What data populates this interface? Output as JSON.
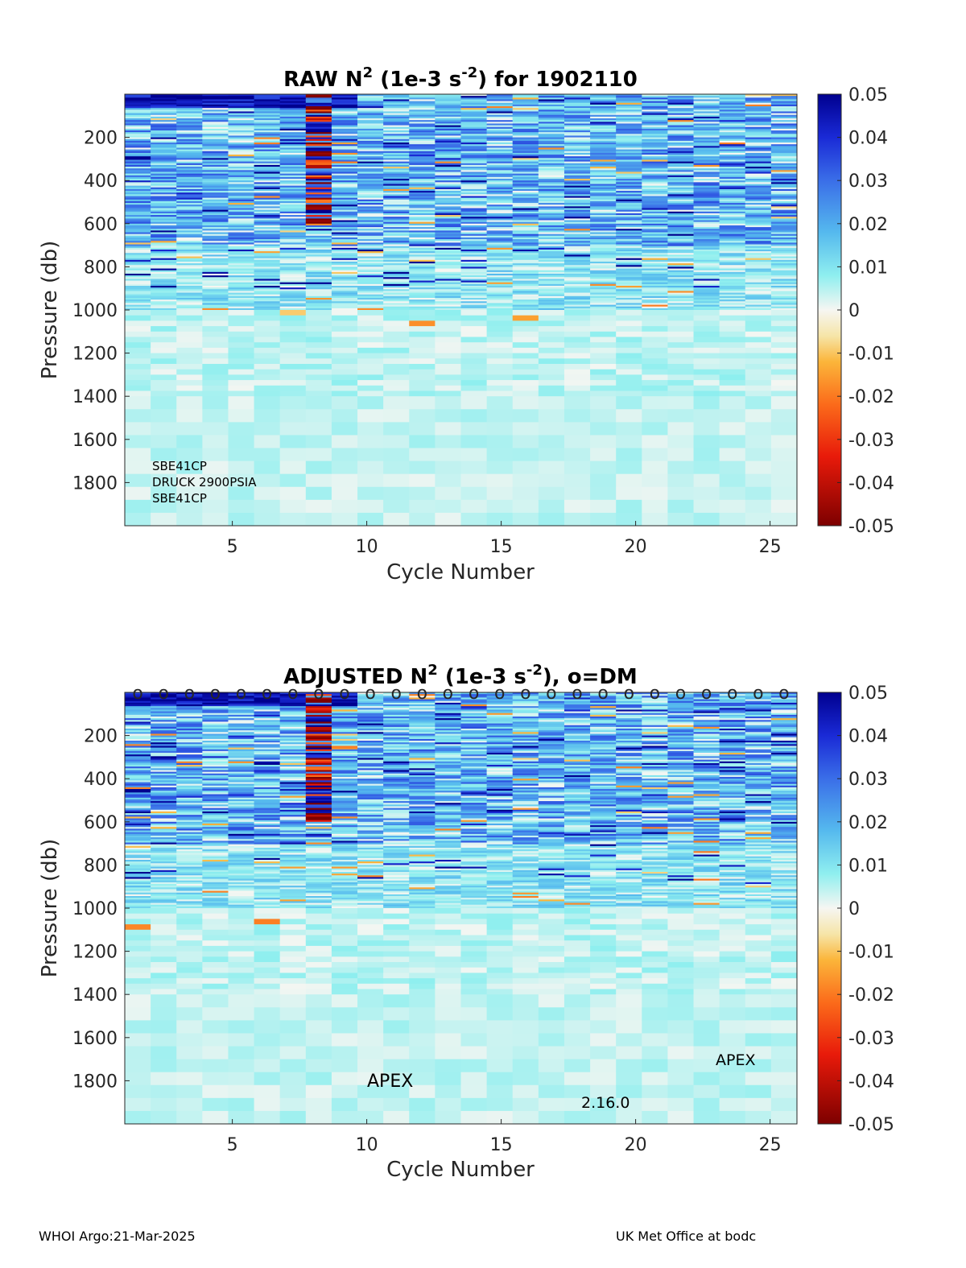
{
  "chart_data": [
    {
      "type": "heatmap",
      "title_main": "RAW N",
      "title_sup1": "2",
      "title_mid": " (1e-3 s",
      "title_sup2": "-2",
      "title_end": ") for 1902110",
      "xlabel": "Cycle Number",
      "ylabel": "Pressure (db)",
      "xlim": [
        1,
        26
      ],
      "ylim": [
        2000,
        0
      ],
      "x_ticks": [
        "5",
        "10",
        "15",
        "20",
        "25"
      ],
      "y_ticks": [
        "200",
        "400",
        "600",
        "800",
        "1000",
        "1200",
        "1400",
        "1600",
        "1800"
      ],
      "colorbar_ticks": [
        "0.05",
        "0.04",
        "0.03",
        "0.02",
        "0.01",
        "0",
        "-0.01",
        "-0.02",
        "-0.03",
        "-0.04",
        "-0.05"
      ],
      "clim": [
        -0.05,
        0.05
      ],
      "annotations": [
        "SBE41CP",
        "DRUCK 2900PSIA",
        "SBE41CP"
      ]
    },
    {
      "type": "heatmap",
      "title_main": "ADJUSTED N",
      "title_sup1": "2",
      "title_mid": " (1e-3 s",
      "title_sup2": "-2",
      "title_end": "), o=DM",
      "xlabel": "Cycle Number",
      "ylabel": "Pressure (db)",
      "xlim": [
        1,
        26
      ],
      "ylim": [
        2000,
        0
      ],
      "x_ticks": [
        "5",
        "10",
        "15",
        "20",
        "25"
      ],
      "y_ticks": [
        "200",
        "400",
        "600",
        "800",
        "1000",
        "1200",
        "1400",
        "1600",
        "1800"
      ],
      "colorbar_ticks": [
        "0.05",
        "0.04",
        "0.03",
        "0.02",
        "0.01",
        "0",
        "-0.01",
        "-0.02",
        "-0.03",
        "-0.04",
        "-0.05"
      ],
      "clim": [
        -0.05,
        0.05
      ],
      "dm_marker": "o",
      "dm_cycles": [
        1,
        2,
        3,
        4,
        5,
        6,
        7,
        8,
        9,
        10,
        11,
        12,
        13,
        14,
        15,
        16,
        17,
        18,
        19,
        20,
        21,
        22,
        23,
        24,
        25,
        26
      ],
      "annotations": [
        "APEX",
        "2.16.0",
        "APEX"
      ]
    }
  ],
  "footer": {
    "left": "WHOI Argo:21-Mar-2025",
    "right": "UK Met Office at bodc"
  }
}
